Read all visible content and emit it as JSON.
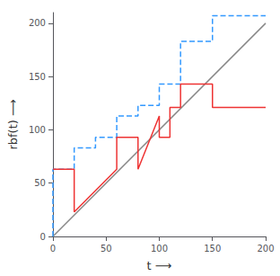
{
  "chart_data": {
    "type": "line",
    "xlabel": "t ⟶",
    "ylabel": "rbf(t) ⟶",
    "xlim": [
      0,
      200
    ],
    "ylim": [
      0,
      210
    ],
    "xticks": [
      0,
      50,
      100,
      150,
      200
    ],
    "yticks": [
      0,
      50,
      100,
      150,
      200
    ],
    "grid": false,
    "series": [
      {
        "color": "#888888",
        "line_style": "solid",
        "x": [
          0,
          200
        ],
        "values": [
          0,
          200
        ]
      },
      {
        "color": "#3399ff",
        "line_style": "dashed",
        "x": [
          0,
          0,
          20,
          20,
          40,
          40,
          60,
          60,
          80,
          80,
          100,
          100,
          120,
          120,
          150,
          150,
          200,
          200
        ],
        "values": [
          0,
          63,
          63,
          83,
          83,
          93,
          93,
          113,
          113,
          123,
          123,
          143,
          143,
          183,
          183,
          207,
          207,
          207
        ]
      },
      {
        "color": "#ee3333",
        "line_style": "solid",
        "x": [
          0,
          20,
          20,
          60,
          60,
          80,
          80,
          100,
          100,
          110,
          110,
          120,
          120,
          150,
          150,
          200
        ],
        "values": [
          63,
          63,
          23,
          63,
          93,
          93,
          63,
          113,
          93,
          93,
          121,
          121,
          143,
          143,
          121,
          121
        ]
      }
    ]
  }
}
